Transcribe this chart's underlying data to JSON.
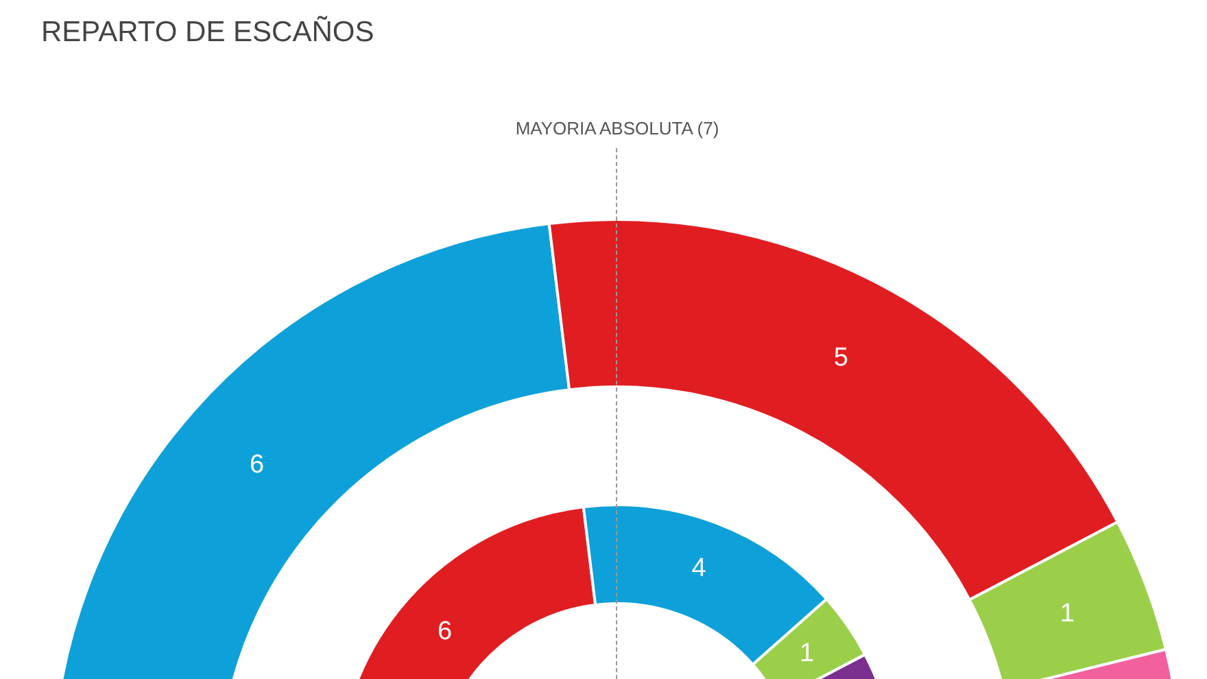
{
  "chart_data": {
    "type": "donut",
    "title": "REPARTO DE ESCAÑOS",
    "annotations": [
      "MAYORIA ABSOLUTA (7)"
    ],
    "legend": false,
    "series": [
      {
        "values": [
          6,
          5,
          1,
          1
        ],
        "colors": [
          "#0ea0d8",
          "#e01e22",
          "#9bcf4a",
          "#f2609e"
        ],
        "value_labels": [
          "6",
          "5",
          "1",
          null
        ]
      },
      {
        "values": [
          6,
          4,
          1,
          2
        ],
        "colors": [
          "#e01e22",
          "#0ea0d8",
          "#9bcf4a",
          "#7a2f8f"
        ],
        "value_labels": [
          "6",
          "4",
          "1",
          null
        ]
      }
    ]
  }
}
